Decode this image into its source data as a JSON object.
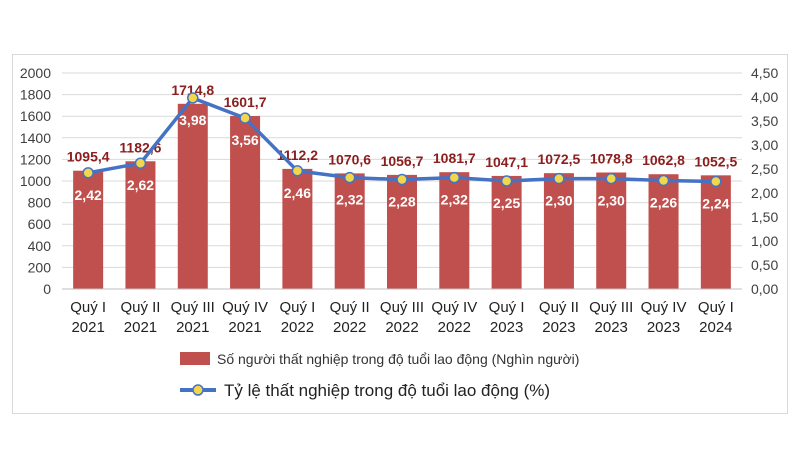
{
  "chart_data": {
    "type": "bar",
    "categories": [
      [
        "Quý I",
        "2021"
      ],
      [
        "Quý II",
        "2021"
      ],
      [
        "Quý III",
        "2021"
      ],
      [
        "Quý IV",
        "2021"
      ],
      [
        "Quý I",
        "2022"
      ],
      [
        "Quý II",
        "2022"
      ],
      [
        "Quý III",
        "2022"
      ],
      [
        "Quý IV",
        "2022"
      ],
      [
        "Quý I",
        "2023"
      ],
      [
        "Quý II",
        "2023"
      ],
      [
        "Quý III",
        "2023"
      ],
      [
        "Quý IV",
        "2023"
      ],
      [
        "Quý I",
        "2024"
      ]
    ],
    "series": [
      {
        "name": "Số người thất nghiệp trong độ tuổi lao động (Nghìn người)",
        "type": "bar",
        "axis": "left",
        "color": "#c0504d",
        "values": [
          1095.4,
          1182.6,
          1714.8,
          1601.7,
          1112.2,
          1070.6,
          1056.7,
          1081.7,
          1047.1,
          1072.5,
          1078.8,
          1062.8,
          1052.5
        ],
        "labels": [
          "1095,4",
          "1182,6",
          "1714,8",
          "1601,7",
          "1112,2",
          "1070,6",
          "1056,7",
          "1081,7",
          "1047,1",
          "1072,5",
          "1078,8",
          "1062,8",
          "1052,5"
        ],
        "label_color": "#8b1e1e"
      },
      {
        "name": "Tỷ lệ thất nghiệp trong độ tuổi lao động (%)",
        "type": "line",
        "axis": "right",
        "color": "#4472c4",
        "marker_color": "#f2d64b",
        "values": [
          2.42,
          2.62,
          3.98,
          3.56,
          2.46,
          2.32,
          2.28,
          2.32,
          2.25,
          2.3,
          2.3,
          2.26,
          2.24
        ],
        "labels": [
          "2,42",
          "2,62",
          "3,98",
          "3,56",
          "2,46",
          "2,32",
          "2,28",
          "2,32",
          "2,25",
          "2,30",
          "2,30",
          "2,26",
          "2,24"
        ]
      }
    ],
    "y_left": {
      "min": 0,
      "max": 2000,
      "step": 200,
      "ticks": [
        "0",
        "200",
        "400",
        "600",
        "800",
        "1000",
        "1200",
        "1400",
        "1600",
        "1800",
        "2000"
      ]
    },
    "y_right": {
      "min": 0,
      "max": 4.5,
      "step": 0.5,
      "ticks": [
        "0,00",
        "0,50",
        "1,00",
        "1,50",
        "2,00",
        "2,50",
        "3,00",
        "3,50",
        "4,00",
        "4,50"
      ]
    },
    "grid": true,
    "legend_position": "bottom"
  }
}
